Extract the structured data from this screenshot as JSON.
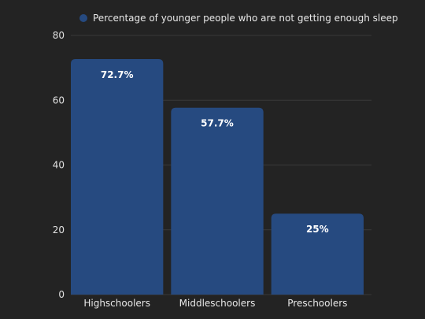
{
  "chart_data": {
    "type": "bar",
    "categories": [
      "Highschoolers",
      "Middleschoolers",
      "Preschoolers"
    ],
    "series": [
      {
        "name": "Percentage of younger people who are not getting enough sleep",
        "values": [
          72.7,
          57.7,
          25
        ]
      }
    ],
    "data_labels": [
      "72.7%",
      "57.7%",
      "25%"
    ],
    "y_ticks": [
      "0",
      "20",
      "40",
      "60",
      "80"
    ],
    "ylim": [
      0,
      80
    ],
    "grid": true,
    "legend_position": "top",
    "colors": {
      "bar": "#264a80",
      "legend_marker": "#264a80",
      "background": "#232323"
    }
  }
}
